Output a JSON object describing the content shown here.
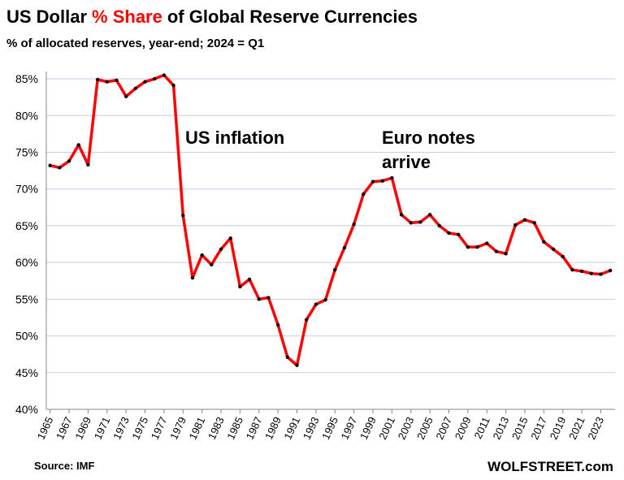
{
  "chart_data": {
    "type": "line",
    "title_parts": [
      "US Dollar",
      "% Share",
      "of Global Reserve Currencies"
    ],
    "title_highlight_index": 1,
    "title_highlight_color": "#ff0000",
    "subtitle": "% of allocated reserves, year-end; 2024 = Q1",
    "x": [
      1965,
      1966,
      1967,
      1968,
      1969,
      1970,
      1971,
      1972,
      1973,
      1974,
      1975,
      1976,
      1977,
      1978,
      1979,
      1980,
      1981,
      1982,
      1983,
      1984,
      1985,
      1986,
      1987,
      1988,
      1989,
      1990,
      1991,
      1992,
      1993,
      1994,
      1995,
      1996,
      1997,
      1998,
      1999,
      2000,
      2001,
      2002,
      2003,
      2004,
      2005,
      2006,
      2007,
      2008,
      2009,
      2010,
      2011,
      2012,
      2013,
      2014,
      2015,
      2016,
      2017,
      2018,
      2019,
      2020,
      2021,
      2022,
      2023,
      2024
    ],
    "series": [
      {
        "color": "#ff0000",
        "marker_color": "#000000",
        "values": [
          73.2,
          72.9,
          73.8,
          76.0,
          73.3,
          84.9,
          84.6,
          84.8,
          82.6,
          83.7,
          84.6,
          85.0,
          85.5,
          84.1,
          66.4,
          57.9,
          61.0,
          59.7,
          61.8,
          63.3,
          56.7,
          57.7,
          55.0,
          55.2,
          51.5,
          47.1,
          46.0,
          52.2,
          54.3,
          54.9,
          59.0,
          62.0,
          65.2,
          69.3,
          71.0,
          71.1,
          71.5,
          66.5,
          65.4,
          65.5,
          66.5,
          65.0,
          64.0,
          63.8,
          62.1,
          62.1,
          62.6,
          61.5,
          61.2,
          65.1,
          65.8,
          65.4,
          62.8,
          61.8,
          60.8,
          59.0,
          58.8,
          58.5,
          58.4,
          58.9
        ]
      }
    ],
    "xlim": [
      1964.6,
      2024.5
    ],
    "xticks": [
      1965,
      1967,
      1969,
      1971,
      1973,
      1975,
      1977,
      1979,
      1981,
      1983,
      1985,
      1987,
      1989,
      1991,
      1993,
      1995,
      1997,
      1999,
      2001,
      2003,
      2005,
      2007,
      2009,
      2011,
      2013,
      2015,
      2017,
      2019,
      2021,
      2023
    ],
    "ylim": [
      40,
      86
    ],
    "yticks": [
      {
        "value": 40,
        "label": "40%"
      },
      {
        "value": 45,
        "label": "45%"
      },
      {
        "value": 50,
        "label": "50%"
      },
      {
        "value": 55,
        "label": "55%"
      },
      {
        "value": 60,
        "label": "60%"
      },
      {
        "value": 65,
        "label": "65%"
      },
      {
        "value": 70,
        "label": "70%"
      },
      {
        "value": 75,
        "label": "75%"
      },
      {
        "value": 80,
        "label": "80%"
      },
      {
        "value": 85,
        "label": "85%"
      }
    ],
    "grid": true,
    "annotations": [
      {
        "lines": [
          "US inflation"
        ],
        "color": "#1aa3e0"
      },
      {
        "lines": [
          "Euro notes",
          "arrive"
        ],
        "color": "#1aa3e0"
      }
    ],
    "source": "Source: IMF",
    "credit": "WOLFSTREET.com"
  }
}
